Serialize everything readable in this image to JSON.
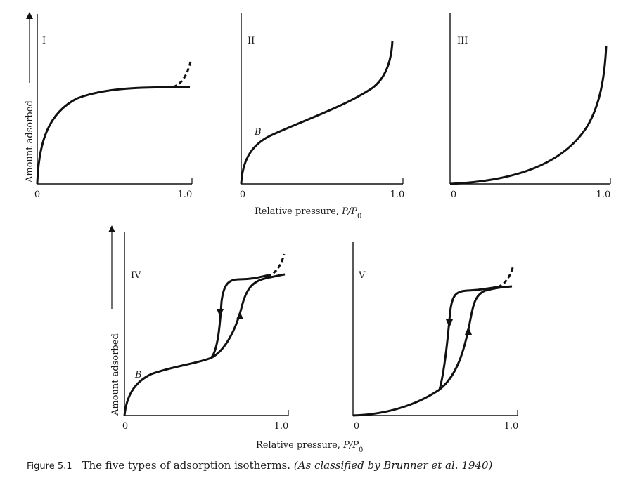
{
  "figure": {
    "caption_number": "Figure 5.1",
    "caption_text": "The five types of adsorption isotherms.",
    "caption_source": "(As classified by Brunner et al. 1940)",
    "xlabel_text": "Relative pressure, ",
    "xlabel_var": "P/P",
    "xlabel_sub": "0",
    "ylabel": "Amount adsorbed",
    "point_label": "B"
  },
  "panels": [
    {
      "id": "I",
      "label": "I",
      "x_start": "0",
      "x_end": "1.0"
    },
    {
      "id": "II",
      "label": "II",
      "x_start": "0",
      "x_end": "1.0"
    },
    {
      "id": "III",
      "label": "III",
      "x_start": "0",
      "x_end": "1.0"
    },
    {
      "id": "IV",
      "label": "IV",
      "x_start": "0",
      "x_end": "1.0"
    },
    {
      "id": "V",
      "label": "V",
      "x_start": "0",
      "x_end": "1.0"
    }
  ]
}
